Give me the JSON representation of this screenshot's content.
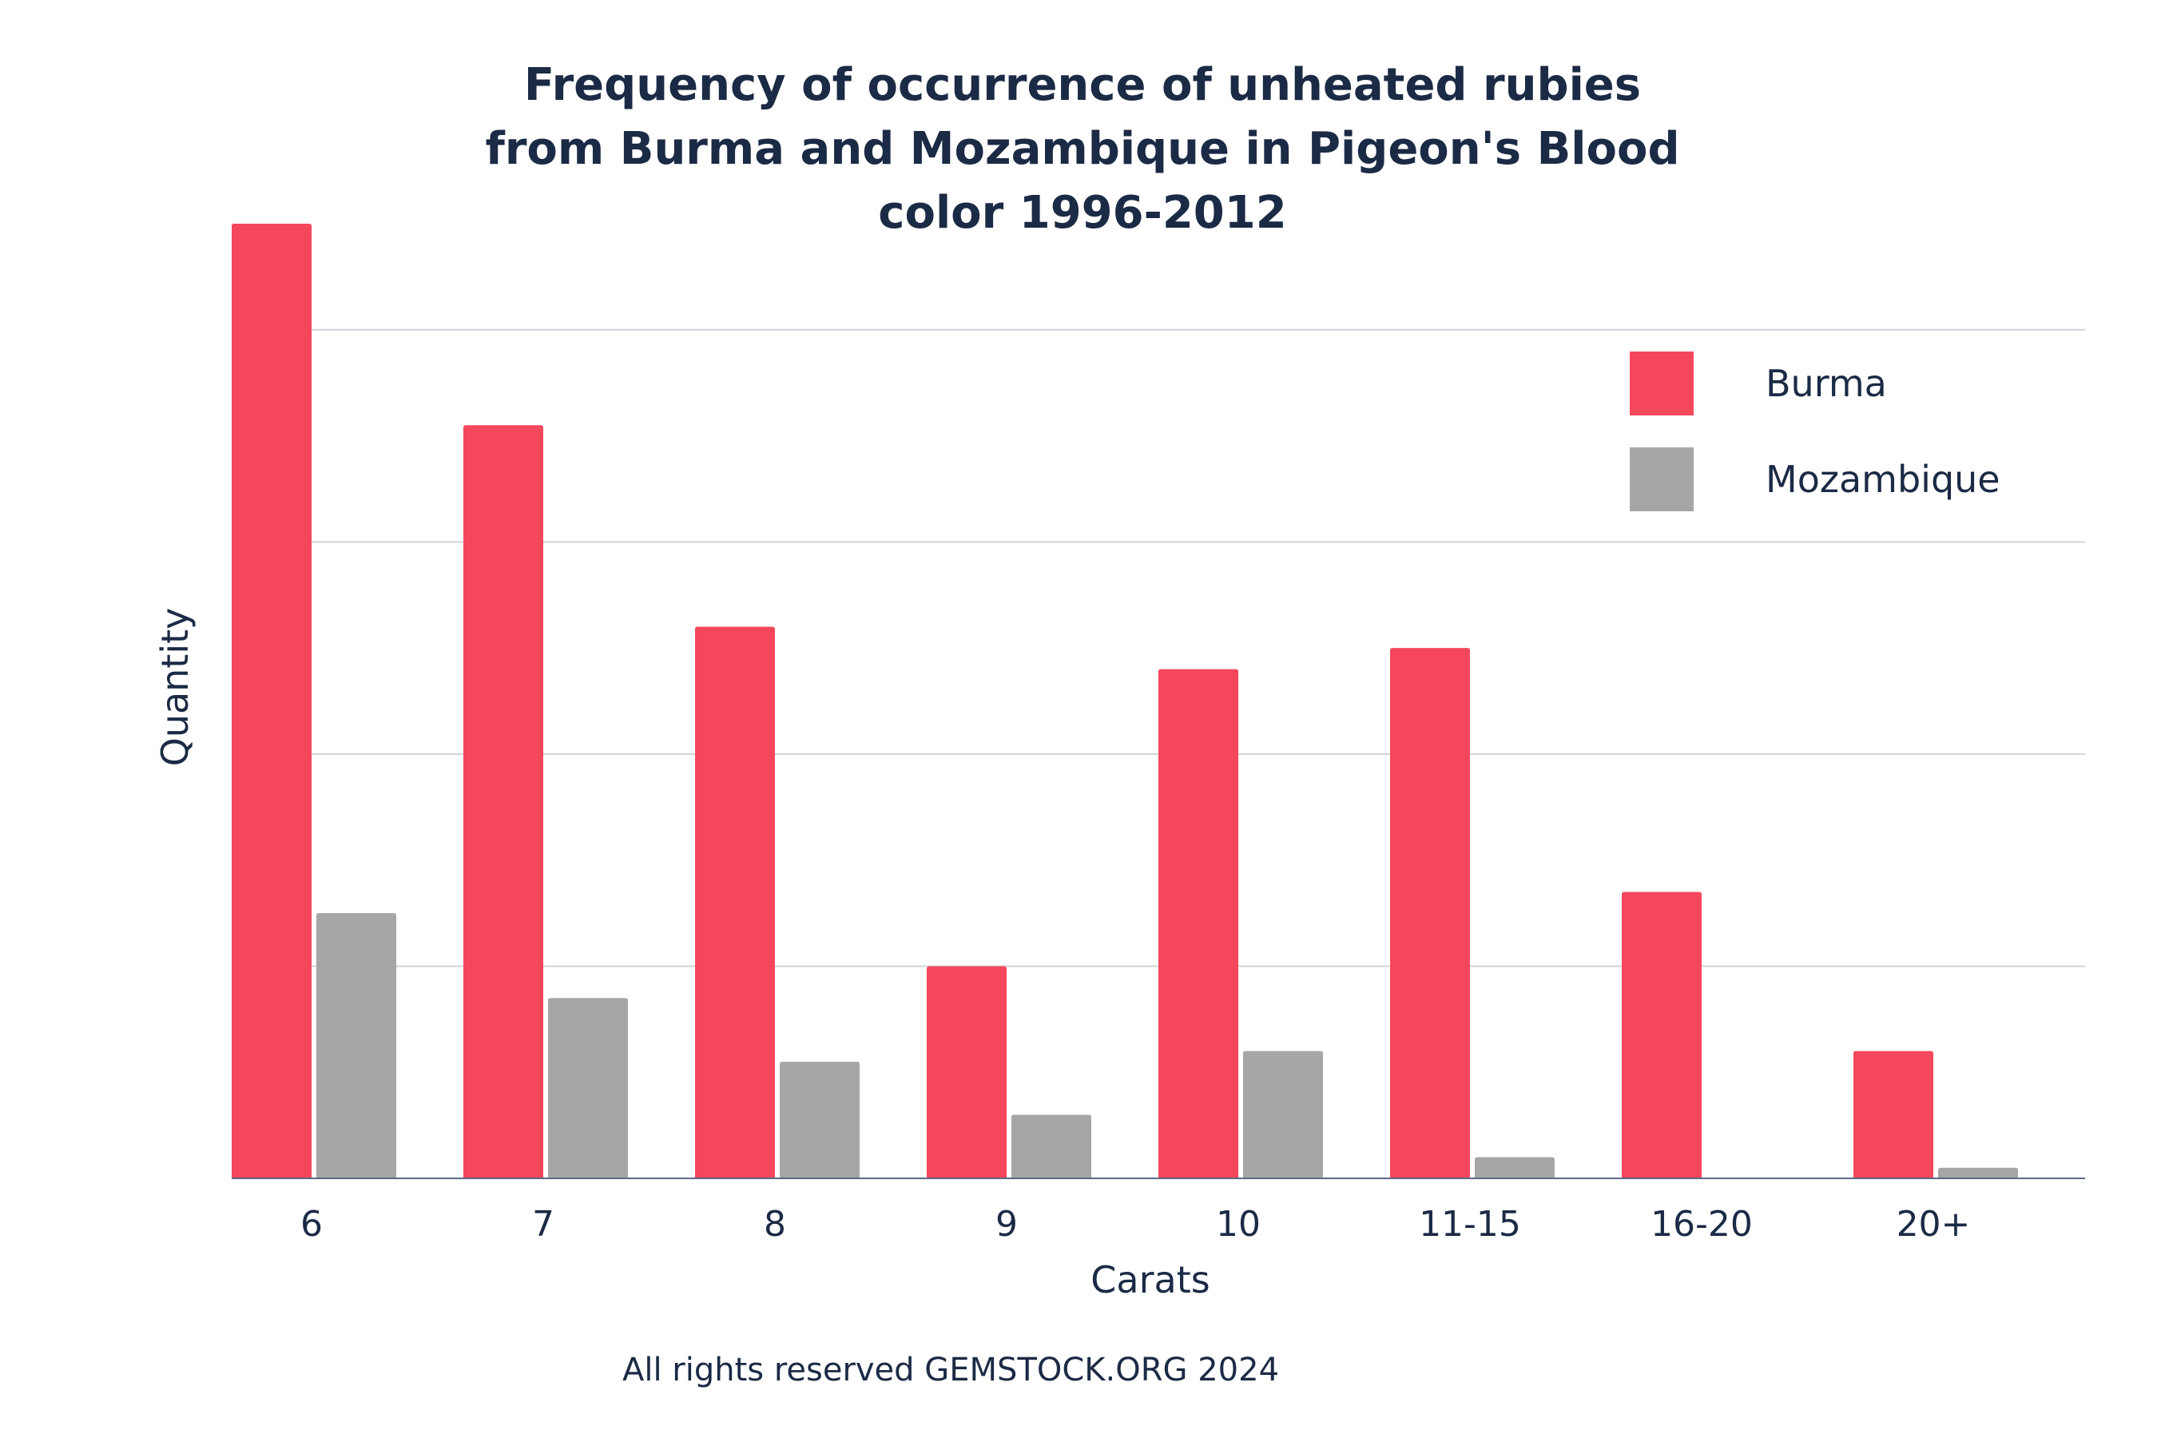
{
  "chart_data": {
    "type": "bar",
    "title": "Frequency of occurrence of unheated rubies from Burma and Mozambique in Pigeon's Blood color 1996-2012",
    "title_lines": [
      "Frequency of occurrence of unheated rubies",
      "from Burma and Mozambique in Pigeon's Blood",
      "color 1996-2012"
    ],
    "xlabel": "Carats",
    "ylabel": "Quantity",
    "categories": [
      "6",
      "7",
      "8",
      "9",
      "10",
      "11-15",
      "16-20",
      "20+"
    ],
    "series": [
      {
        "name": "Burma",
        "color": "#f4475c",
        "values": [
          90,
          71,
          52,
          20,
          48,
          50,
          27,
          12
        ]
      },
      {
        "name": "Mozambique",
        "color": "#a6a6a6",
        "values": [
          25,
          17,
          11,
          6,
          12,
          2,
          0,
          1
        ]
      }
    ],
    "ylim": [
      0,
      90
    ],
    "gridlines": [
      20,
      40,
      60,
      80
    ],
    "grid": "horizontal",
    "legend_position": "top-right",
    "y_tick_labels_shown": false
  },
  "footer": "All rights reserved GEMSTOCK.ORG 2024"
}
